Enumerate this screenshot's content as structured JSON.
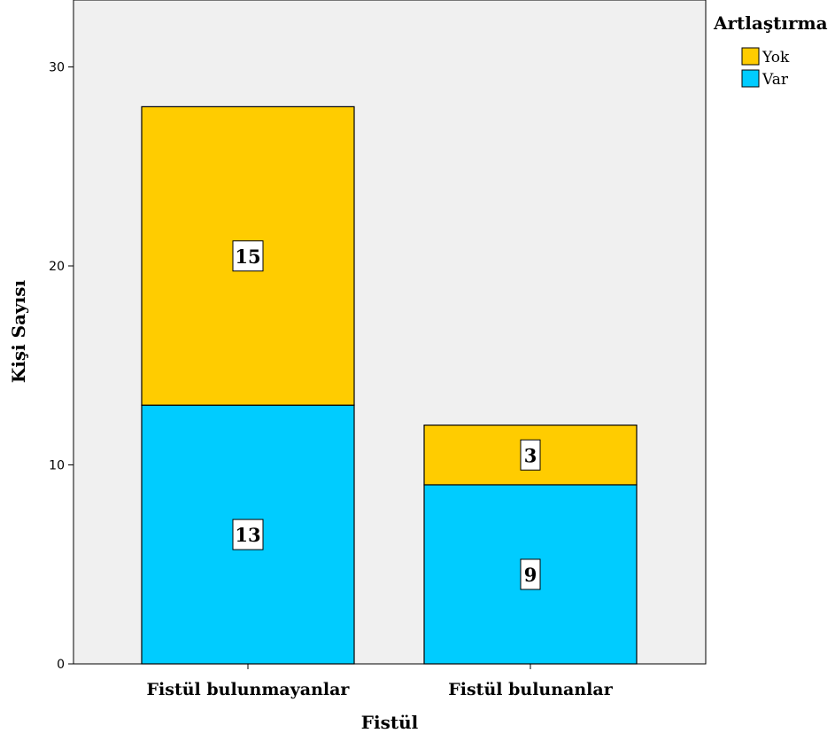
{
  "chart_data": {
    "type": "bar",
    "stacked": true,
    "categories": [
      "Fistül bulunmayanlar",
      "Fistül bulunanlar"
    ],
    "series": [
      {
        "name": "Var",
        "values": [
          13,
          9
        ],
        "color": "#00CCFF"
      },
      {
        "name": "Yok",
        "values": [
          15,
          3
        ],
        "color": "#FFCC00"
      }
    ],
    "xlabel": "Fistül",
    "ylabel": "Kişi Sayısı",
    "ylim": [
      0,
      33
    ],
    "yticks": [
      0,
      10,
      20,
      30
    ],
    "legend_title": "Artlaştırma",
    "legend_order": [
      "Yok",
      "Var"
    ],
    "legend_position": "top-right",
    "plot_background": "#F0F0F0",
    "grid": false
  }
}
